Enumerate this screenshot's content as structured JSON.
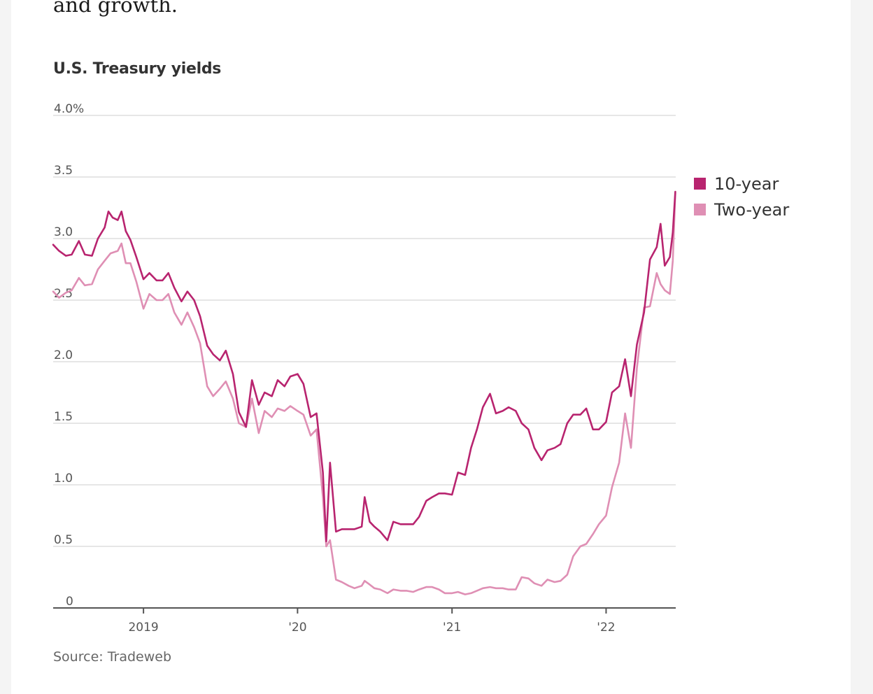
{
  "article": {
    "intro_text": "and growth."
  },
  "chart_data": {
    "type": "line",
    "title": "U.S. Treasury yields",
    "source": "Source: Tradeweb",
    "xlabel": "",
    "ylabel": "",
    "ylim": [
      0,
      4.0
    ],
    "xlim": [
      "2018-06-01",
      "2022-06-15"
    ],
    "y_ticks": [
      {
        "value": 0,
        "label": "0"
      },
      {
        "value": 0.5,
        "label": "0.5"
      },
      {
        "value": 1.0,
        "label": "1.0"
      },
      {
        "value": 1.5,
        "label": "1.5"
      },
      {
        "value": 2.0,
        "label": "2.0"
      },
      {
        "value": 2.5,
        "label": "2.5"
      },
      {
        "value": 3.0,
        "label": "3.0"
      },
      {
        "value": 3.5,
        "label": "3.5"
      },
      {
        "value": 4.0,
        "label": "4.0%"
      }
    ],
    "x_ticks": [
      {
        "value": "2019-01-01",
        "label": "2019"
      },
      {
        "value": "2020-01-01",
        "label": "'20"
      },
      {
        "value": "2021-01-01",
        "label": "'21"
      },
      {
        "value": "2022-01-01",
        "label": "'22"
      }
    ],
    "grid": true,
    "legend_position": "right",
    "series": [
      {
        "name": "10-year",
        "color": "#b8246f",
        "points": [
          [
            "2018-06-01",
            2.95
          ],
          [
            "2018-06-15",
            2.9
          ],
          [
            "2018-07-01",
            2.86
          ],
          [
            "2018-07-15",
            2.87
          ],
          [
            "2018-08-01",
            2.98
          ],
          [
            "2018-08-15",
            2.87
          ],
          [
            "2018-09-01",
            2.86
          ],
          [
            "2018-09-15",
            3.0
          ],
          [
            "2018-10-01",
            3.09
          ],
          [
            "2018-10-10",
            3.22
          ],
          [
            "2018-10-20",
            3.17
          ],
          [
            "2018-11-01",
            3.15
          ],
          [
            "2018-11-10",
            3.22
          ],
          [
            "2018-11-20",
            3.06
          ],
          [
            "2018-12-01",
            2.99
          ],
          [
            "2018-12-15",
            2.85
          ],
          [
            "2019-01-01",
            2.67
          ],
          [
            "2019-01-15",
            2.72
          ],
          [
            "2019-02-01",
            2.66
          ],
          [
            "2019-02-15",
            2.66
          ],
          [
            "2019-03-01",
            2.72
          ],
          [
            "2019-03-15",
            2.6
          ],
          [
            "2019-04-01",
            2.49
          ],
          [
            "2019-04-15",
            2.57
          ],
          [
            "2019-05-01",
            2.5
          ],
          [
            "2019-05-15",
            2.37
          ],
          [
            "2019-06-01",
            2.13
          ],
          [
            "2019-06-15",
            2.06
          ],
          [
            "2019-07-01",
            2.01
          ],
          [
            "2019-07-15",
            2.09
          ],
          [
            "2019-08-01",
            1.9
          ],
          [
            "2019-08-15",
            1.59
          ],
          [
            "2019-09-01",
            1.47
          ],
          [
            "2019-09-15",
            1.85
          ],
          [
            "2019-10-01",
            1.65
          ],
          [
            "2019-10-15",
            1.75
          ],
          [
            "2019-11-01",
            1.72
          ],
          [
            "2019-11-15",
            1.85
          ],
          [
            "2019-12-01",
            1.8
          ],
          [
            "2019-12-15",
            1.88
          ],
          [
            "2020-01-01",
            1.9
          ],
          [
            "2020-01-15",
            1.82
          ],
          [
            "2020-02-01",
            1.55
          ],
          [
            "2020-02-15",
            1.58
          ],
          [
            "2020-03-01",
            1.1
          ],
          [
            "2020-03-09",
            0.54
          ],
          [
            "2020-03-18",
            1.18
          ],
          [
            "2020-04-01",
            0.62
          ],
          [
            "2020-04-15",
            0.64
          ],
          [
            "2020-05-01",
            0.64
          ],
          [
            "2020-05-15",
            0.64
          ],
          [
            "2020-06-01",
            0.66
          ],
          [
            "2020-06-08",
            0.9
          ],
          [
            "2020-06-20",
            0.7
          ],
          [
            "2020-07-01",
            0.66
          ],
          [
            "2020-07-15",
            0.62
          ],
          [
            "2020-08-01",
            0.55
          ],
          [
            "2020-08-15",
            0.7
          ],
          [
            "2020-09-01",
            0.68
          ],
          [
            "2020-09-15",
            0.68
          ],
          [
            "2020-10-01",
            0.68
          ],
          [
            "2020-10-15",
            0.74
          ],
          [
            "2020-11-01",
            0.87
          ],
          [
            "2020-11-15",
            0.9
          ],
          [
            "2020-12-01",
            0.93
          ],
          [
            "2020-12-15",
            0.93
          ],
          [
            "2021-01-01",
            0.92
          ],
          [
            "2021-01-15",
            1.1
          ],
          [
            "2021-02-01",
            1.08
          ],
          [
            "2021-02-15",
            1.3
          ],
          [
            "2021-03-01",
            1.45
          ],
          [
            "2021-03-15",
            1.63
          ],
          [
            "2021-04-01",
            1.74
          ],
          [
            "2021-04-15",
            1.58
          ],
          [
            "2021-05-01",
            1.6
          ],
          [
            "2021-05-15",
            1.63
          ],
          [
            "2021-06-01",
            1.6
          ],
          [
            "2021-06-15",
            1.5
          ],
          [
            "2021-07-01",
            1.45
          ],
          [
            "2021-07-15",
            1.3
          ],
          [
            "2021-08-01",
            1.2
          ],
          [
            "2021-08-15",
            1.28
          ],
          [
            "2021-09-01",
            1.3
          ],
          [
            "2021-09-15",
            1.33
          ],
          [
            "2021-10-01",
            1.5
          ],
          [
            "2021-10-15",
            1.57
          ],
          [
            "2021-11-01",
            1.57
          ],
          [
            "2021-11-15",
            1.62
          ],
          [
            "2021-12-01",
            1.45
          ],
          [
            "2021-12-15",
            1.45
          ],
          [
            "2022-01-01",
            1.51
          ],
          [
            "2022-01-15",
            1.75
          ],
          [
            "2022-02-01",
            1.8
          ],
          [
            "2022-02-15",
            2.02
          ],
          [
            "2022-03-01",
            1.72
          ],
          [
            "2022-03-15",
            2.14
          ],
          [
            "2022-04-01",
            2.4
          ],
          [
            "2022-04-15",
            2.83
          ],
          [
            "2022-05-01",
            2.93
          ],
          [
            "2022-05-10",
            3.12
          ],
          [
            "2022-05-20",
            2.78
          ],
          [
            "2022-06-01",
            2.85
          ],
          [
            "2022-06-08",
            3.05
          ],
          [
            "2022-06-14",
            3.38
          ]
        ]
      },
      {
        "name": "Two-year",
        "color": "#df8fb4",
        "points": [
          [
            "2018-06-01",
            2.57
          ],
          [
            "2018-06-15",
            2.52
          ],
          [
            "2018-07-01",
            2.56
          ],
          [
            "2018-07-15",
            2.58
          ],
          [
            "2018-08-01",
            2.68
          ],
          [
            "2018-08-15",
            2.62
          ],
          [
            "2018-09-01",
            2.63
          ],
          [
            "2018-09-15",
            2.75
          ],
          [
            "2018-10-01",
            2.82
          ],
          [
            "2018-10-15",
            2.88
          ],
          [
            "2018-11-01",
            2.9
          ],
          [
            "2018-11-10",
            2.96
          ],
          [
            "2018-11-20",
            2.8
          ],
          [
            "2018-12-01",
            2.8
          ],
          [
            "2018-12-15",
            2.65
          ],
          [
            "2019-01-01",
            2.43
          ],
          [
            "2019-01-15",
            2.55
          ],
          [
            "2019-02-01",
            2.5
          ],
          [
            "2019-02-15",
            2.5
          ],
          [
            "2019-03-01",
            2.55
          ],
          [
            "2019-03-15",
            2.4
          ],
          [
            "2019-04-01",
            2.3
          ],
          [
            "2019-04-15",
            2.4
          ],
          [
            "2019-05-01",
            2.28
          ],
          [
            "2019-05-15",
            2.15
          ],
          [
            "2019-06-01",
            1.8
          ],
          [
            "2019-06-15",
            1.72
          ],
          [
            "2019-07-01",
            1.78
          ],
          [
            "2019-07-15",
            1.84
          ],
          [
            "2019-08-01",
            1.7
          ],
          [
            "2019-08-15",
            1.5
          ],
          [
            "2019-09-01",
            1.47
          ],
          [
            "2019-09-15",
            1.7
          ],
          [
            "2019-10-01",
            1.42
          ],
          [
            "2019-10-15",
            1.6
          ],
          [
            "2019-11-01",
            1.55
          ],
          [
            "2019-11-15",
            1.62
          ],
          [
            "2019-12-01",
            1.6
          ],
          [
            "2019-12-15",
            1.64
          ],
          [
            "2020-01-01",
            1.6
          ],
          [
            "2020-01-15",
            1.57
          ],
          [
            "2020-02-01",
            1.4
          ],
          [
            "2020-02-15",
            1.45
          ],
          [
            "2020-03-01",
            0.9
          ],
          [
            "2020-03-09",
            0.5
          ],
          [
            "2020-03-18",
            0.55
          ],
          [
            "2020-04-01",
            0.23
          ],
          [
            "2020-04-15",
            0.21
          ],
          [
            "2020-05-01",
            0.18
          ],
          [
            "2020-05-15",
            0.16
          ],
          [
            "2020-06-01",
            0.18
          ],
          [
            "2020-06-08",
            0.22
          ],
          [
            "2020-06-20",
            0.19
          ],
          [
            "2020-07-01",
            0.16
          ],
          [
            "2020-07-15",
            0.15
          ],
          [
            "2020-08-01",
            0.12
          ],
          [
            "2020-08-15",
            0.15
          ],
          [
            "2020-09-01",
            0.14
          ],
          [
            "2020-09-15",
            0.14
          ],
          [
            "2020-10-01",
            0.13
          ],
          [
            "2020-10-15",
            0.15
          ],
          [
            "2020-11-01",
            0.17
          ],
          [
            "2020-11-15",
            0.17
          ],
          [
            "2020-12-01",
            0.15
          ],
          [
            "2020-12-15",
            0.12
          ],
          [
            "2021-01-01",
            0.12
          ],
          [
            "2021-01-15",
            0.13
          ],
          [
            "2021-02-01",
            0.11
          ],
          [
            "2021-02-15",
            0.12
          ],
          [
            "2021-03-01",
            0.14
          ],
          [
            "2021-03-15",
            0.16
          ],
          [
            "2021-04-01",
            0.17
          ],
          [
            "2021-04-15",
            0.16
          ],
          [
            "2021-05-01",
            0.16
          ],
          [
            "2021-05-15",
            0.15
          ],
          [
            "2021-06-01",
            0.15
          ],
          [
            "2021-06-15",
            0.25
          ],
          [
            "2021-07-01",
            0.24
          ],
          [
            "2021-07-15",
            0.2
          ],
          [
            "2021-08-01",
            0.18
          ],
          [
            "2021-08-15",
            0.23
          ],
          [
            "2021-09-01",
            0.21
          ],
          [
            "2021-09-15",
            0.22
          ],
          [
            "2021-10-01",
            0.27
          ],
          [
            "2021-10-15",
            0.42
          ],
          [
            "2021-11-01",
            0.5
          ],
          [
            "2021-11-15",
            0.52
          ],
          [
            "2021-12-01",
            0.6
          ],
          [
            "2021-12-15",
            0.68
          ],
          [
            "2022-01-01",
            0.75
          ],
          [
            "2022-01-15",
            0.98
          ],
          [
            "2022-02-01",
            1.18
          ],
          [
            "2022-02-15",
            1.58
          ],
          [
            "2022-03-01",
            1.3
          ],
          [
            "2022-03-15",
            1.95
          ],
          [
            "2022-04-01",
            2.44
          ],
          [
            "2022-04-15",
            2.45
          ],
          [
            "2022-05-01",
            2.72
          ],
          [
            "2022-05-10",
            2.63
          ],
          [
            "2022-05-20",
            2.58
          ],
          [
            "2022-06-01",
            2.55
          ],
          [
            "2022-06-08",
            2.82
          ],
          [
            "2022-06-14",
            3.37
          ]
        ]
      }
    ]
  }
}
